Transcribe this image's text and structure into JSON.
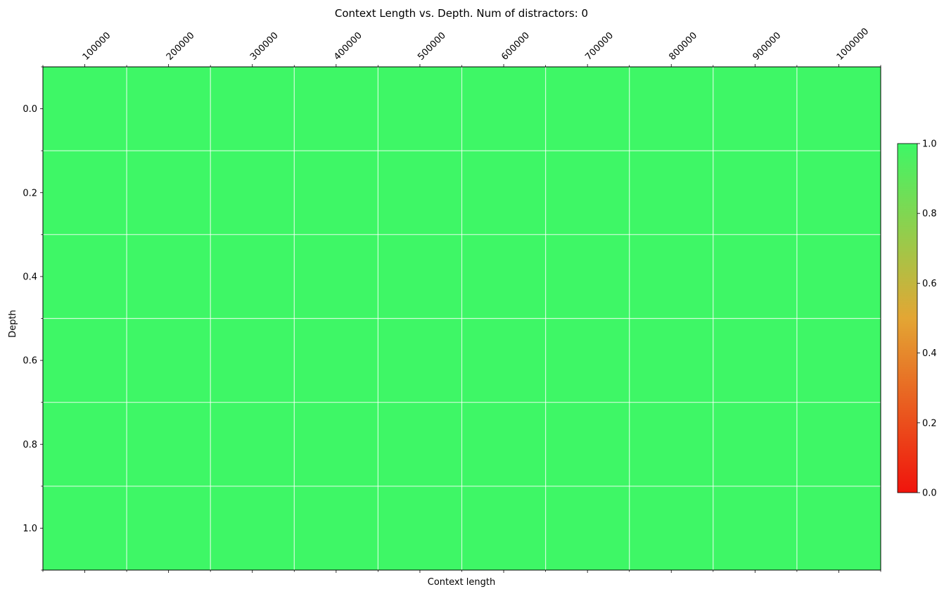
{
  "chart_data": {
    "type": "heatmap",
    "title": "Context Length vs. Depth. Num of distractors: 0",
    "xlabel": "Context length",
    "ylabel": "Depth",
    "x_ticks": [
      "100000",
      "200000",
      "300000",
      "400000",
      "500000",
      "600000",
      "700000",
      "800000",
      "900000",
      "1000000"
    ],
    "y_ticks": [
      "0.0",
      "0.2",
      "0.4",
      "0.6",
      "0.8",
      "1.0"
    ],
    "x": [
      100000,
      200000,
      300000,
      400000,
      500000,
      600000,
      700000,
      800000,
      900000,
      1000000
    ],
    "y": [
      0.0,
      0.2,
      0.4,
      0.6,
      0.8,
      1.0
    ],
    "values": [
      [
        1,
        1,
        1,
        1,
        1,
        1,
        1,
        1,
        1,
        1
      ],
      [
        1,
        1,
        1,
        1,
        1,
        1,
        1,
        1,
        1,
        1
      ],
      [
        1,
        1,
        1,
        1,
        1,
        1,
        1,
        1,
        1,
        1
      ],
      [
        1,
        1,
        1,
        1,
        1,
        1,
        1,
        1,
        1,
        1
      ],
      [
        1,
        1,
        1,
        1,
        1,
        1,
        1,
        1,
        1,
        1
      ],
      [
        1,
        1,
        1,
        1,
        1,
        1,
        1,
        1,
        1,
        1
      ]
    ],
    "colorbar": {
      "range": [
        0.0,
        1.0
      ],
      "ticks": [
        "0.0",
        "0.2",
        "0.4",
        "0.6",
        "0.8",
        "1.0"
      ],
      "colormap": [
        "#f0140c",
        "#e3a634",
        "#3ef766"
      ]
    },
    "grid": true,
    "x_axis_position": "top"
  }
}
